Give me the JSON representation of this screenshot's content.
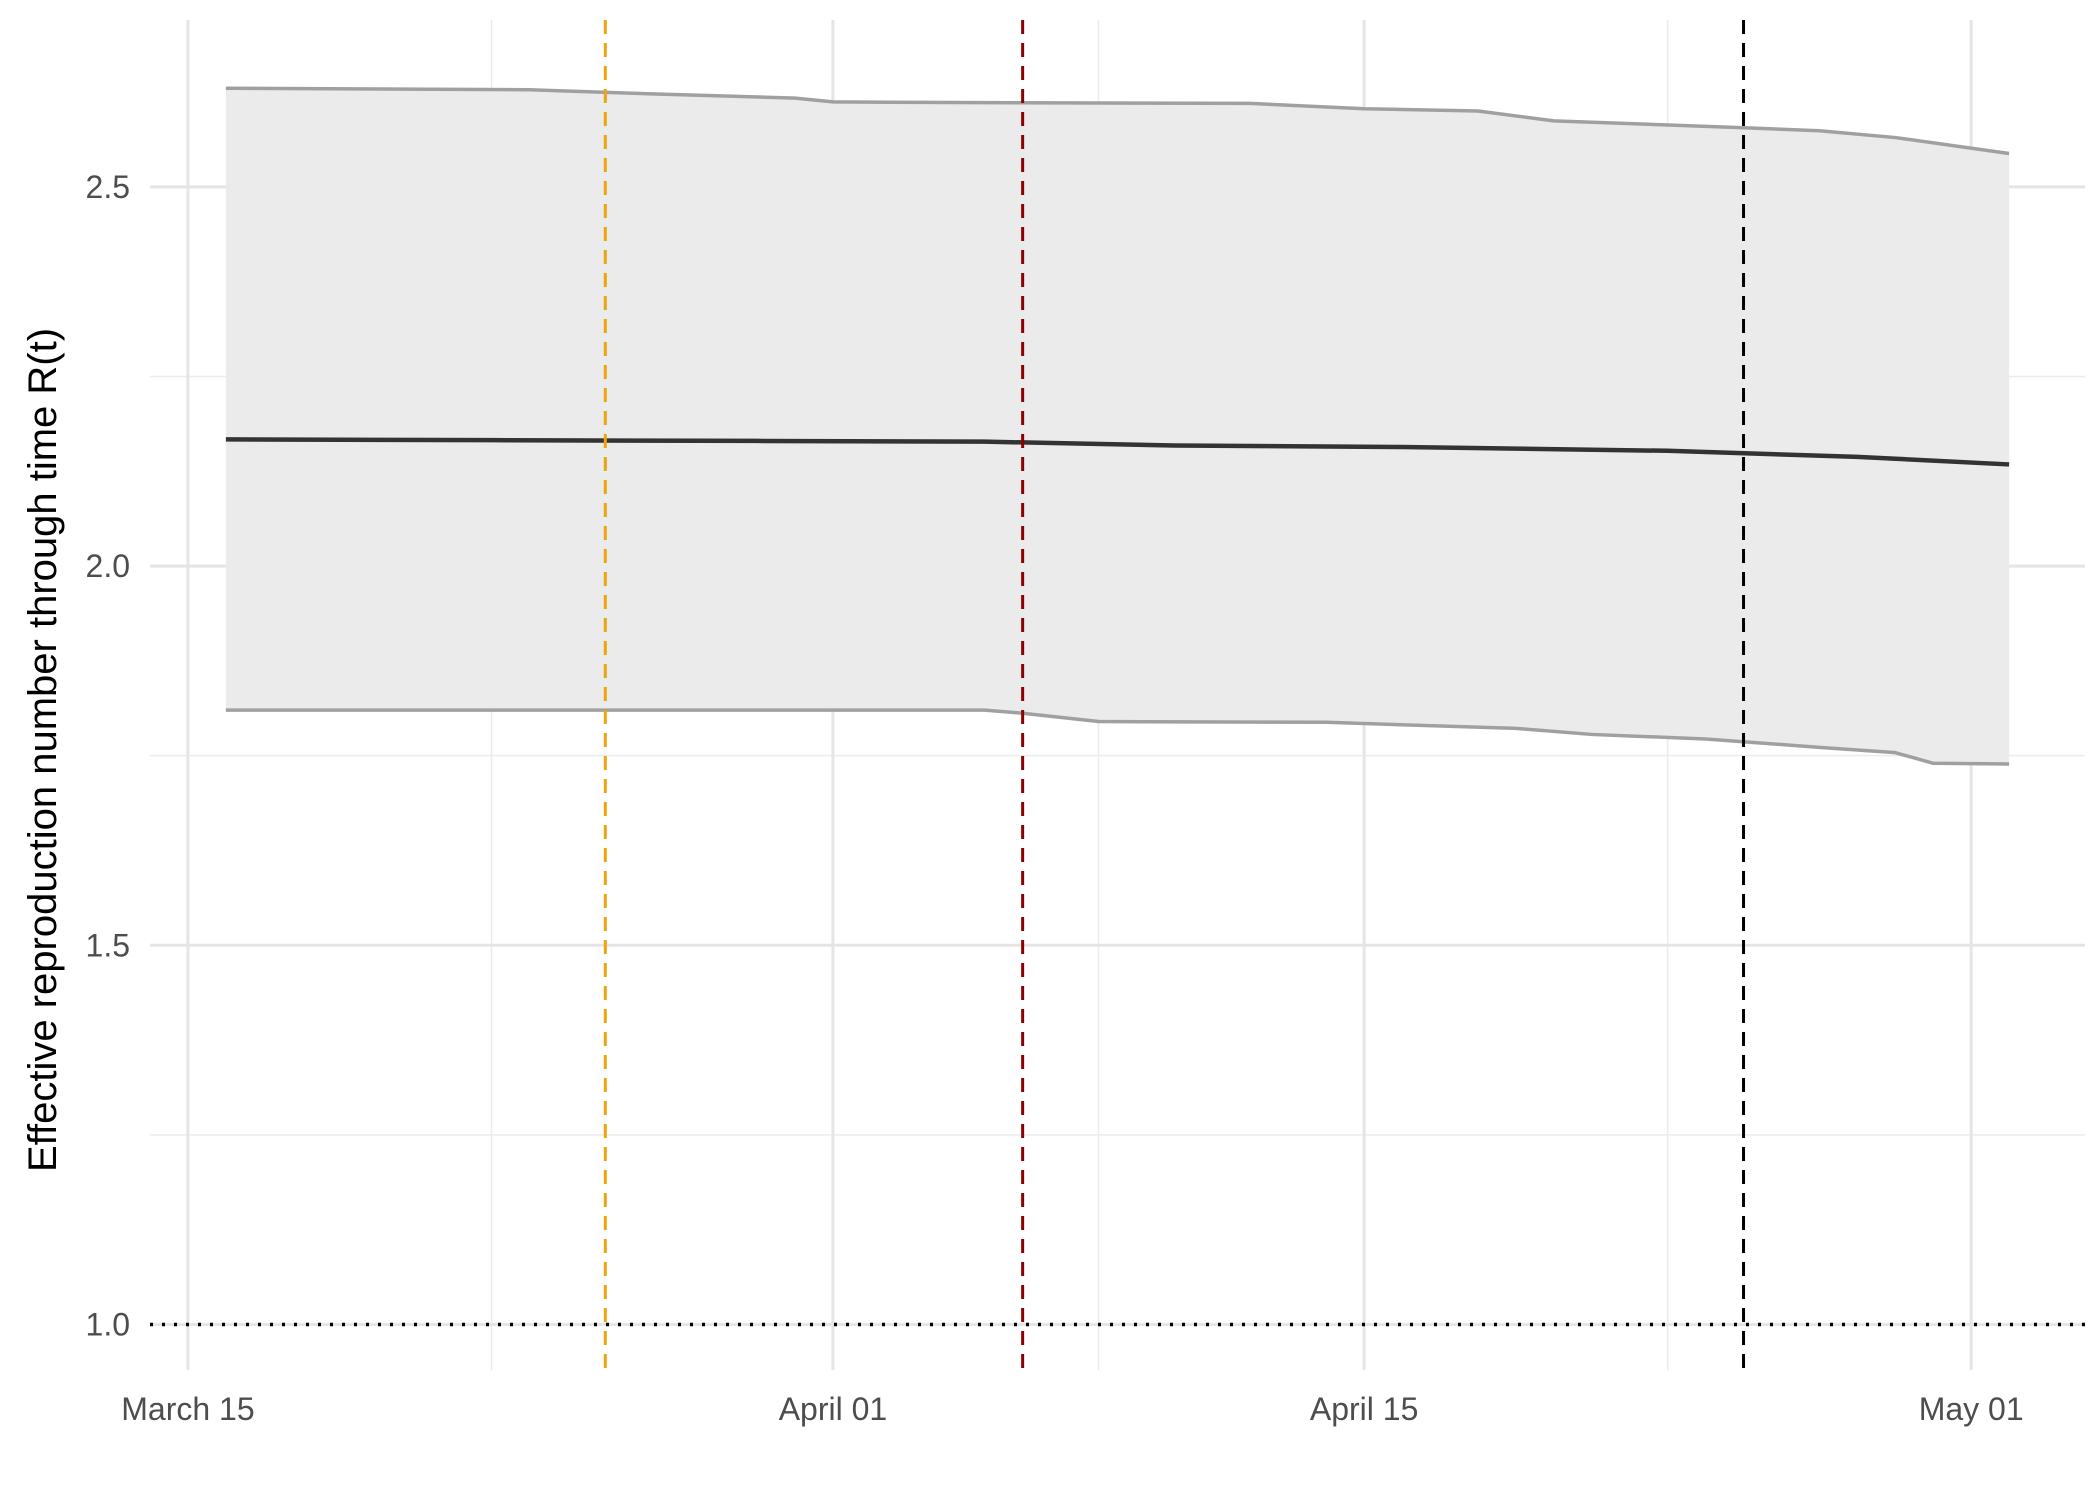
{
  "chart_data": {
    "type": "line",
    "title": "",
    "xlabel": "",
    "ylabel": "Effective reproduction number through time R(t)",
    "x_axis": {
      "type": "date",
      "ticks": [
        "2020-03-15",
        "2020-04-01",
        "2020-04-15",
        "2020-05-01"
      ],
      "tick_labels": [
        "March 15",
        "April 01",
        "April 15",
        "May 01"
      ],
      "range": [
        "2020-03-14",
        "2020-05-04"
      ]
    },
    "y_axis": {
      "ticks": [
        1.0,
        1.5,
        2.0,
        2.5
      ],
      "tick_labels": [
        "1.0",
        "1.5",
        "2.0",
        "2.5"
      ],
      "range": [
        0.94,
        2.72
      ]
    },
    "grid": true,
    "series": [
      {
        "role": "median",
        "color": "#333333",
        "points": [
          [
            "2020-03-16",
            2.167
          ],
          [
            "2020-03-23",
            2.166
          ],
          [
            "2020-03-30",
            2.165
          ],
          [
            "2020-04-05",
            2.164
          ],
          [
            "2020-04-10",
            2.159
          ],
          [
            "2020-04-16",
            2.157
          ],
          [
            "2020-04-23",
            2.152
          ],
          [
            "2020-04-28",
            2.144
          ],
          [
            "2020-05-02",
            2.134
          ]
        ]
      },
      {
        "role": "upper-bound",
        "color": "#a0a0a0",
        "points": [
          [
            "2020-03-16",
            2.63
          ],
          [
            "2020-03-24",
            2.628
          ],
          [
            "2020-03-27",
            2.623
          ],
          [
            "2020-03-31",
            2.617
          ],
          [
            "2020-04-01",
            2.612
          ],
          [
            "2020-04-05",
            2.611
          ],
          [
            "2020-04-12",
            2.61
          ],
          [
            "2020-04-15",
            2.603
          ],
          [
            "2020-04-18",
            2.6
          ],
          [
            "2020-04-20",
            2.587
          ],
          [
            "2020-04-25",
            2.578
          ],
          [
            "2020-04-27",
            2.574
          ],
          [
            "2020-04-29",
            2.565
          ],
          [
            "2020-05-02",
            2.544
          ]
        ]
      },
      {
        "role": "lower-bound",
        "color": "#a0a0a0",
        "points": [
          [
            "2020-03-16",
            1.81
          ],
          [
            "2020-03-25",
            1.81
          ],
          [
            "2020-04-05",
            1.81
          ],
          [
            "2020-04-06",
            1.806
          ],
          [
            "2020-04-08",
            1.795
          ],
          [
            "2020-04-14",
            1.794
          ],
          [
            "2020-04-19",
            1.786
          ],
          [
            "2020-04-21",
            1.778
          ],
          [
            "2020-04-24",
            1.772
          ],
          [
            "2020-04-27",
            1.761
          ],
          [
            "2020-04-29",
            1.754
          ],
          [
            "2020-04-30",
            1.74
          ],
          [
            "2020-05-02",
            1.739
          ]
        ]
      }
    ],
    "ribbon": {
      "fill": "#ebebeb",
      "between": [
        "lower-bound",
        "upper-bound"
      ]
    },
    "reference_lines": [
      {
        "orientation": "vertical",
        "x": "2020-03-26",
        "color": "#f0a30a",
        "style": "dashed"
      },
      {
        "orientation": "vertical",
        "x": "2020-04-06",
        "color": "#8b0000",
        "style": "dashed"
      },
      {
        "orientation": "vertical",
        "x": "2020-04-25",
        "color": "#000000",
        "style": "dashed"
      },
      {
        "orientation": "horizontal",
        "y": 1.0,
        "color": "#000000",
        "style": "dotted"
      }
    ]
  }
}
